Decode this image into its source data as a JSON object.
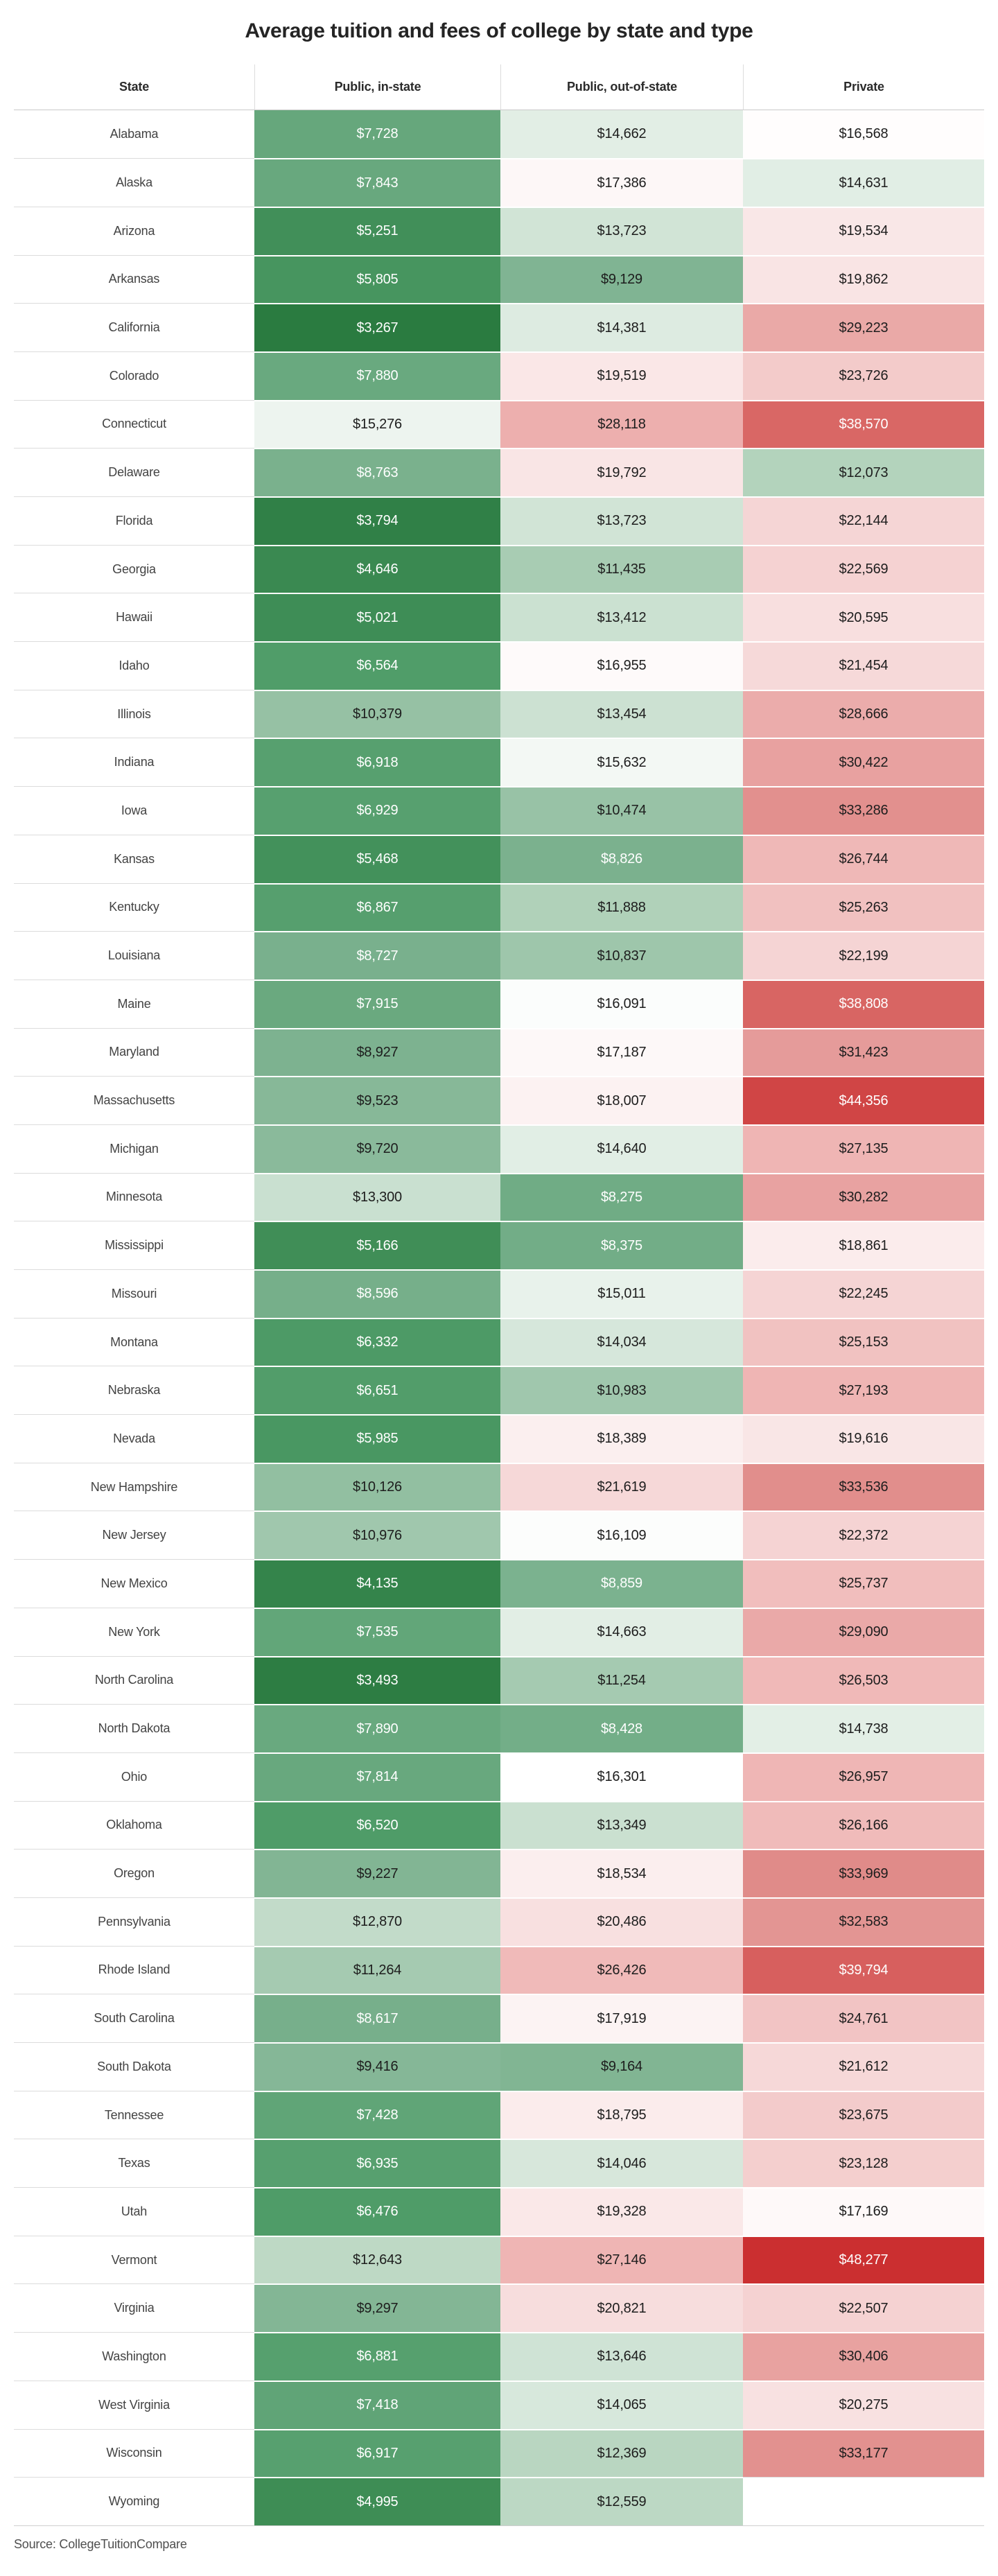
{
  "title": "Average tuition and fees of college by state and type",
  "source_note": "Source: CollegeTuitionCompare",
  "chart_data": {
    "type": "heatmap",
    "title": "Average tuition and fees of college by state and type",
    "columns": [
      "State",
      "Public, in-state",
      "Public, out-of-state",
      "Private"
    ],
    "value_format": "$#,##0",
    "legend_position": "none",
    "grid": false,
    "color_scale": {
      "type": "diverging",
      "description": "green = low tuition, white ≈ $16,300, red = high tuition; single scale shared by all three value columns",
      "stops": [
        [
          3267,
          "#2a7b40"
        ],
        [
          6500,
          "#4f9c68"
        ],
        [
          9000,
          "#7eb391"
        ],
        [
          12000,
          "#b2d2bb"
        ],
        [
          16300,
          "#ffffff"
        ],
        [
          21000,
          "#f7dcdc"
        ],
        [
          27000,
          "#efb6b5"
        ],
        [
          33000,
          "#e29290"
        ],
        [
          39000,
          "#d86462"
        ],
        [
          48277,
          "#cb2f30"
        ]
      ],
      "white_text_below": 8900,
      "white_text_above": 36000,
      "dark_text_color": "#1d1d1d",
      "white_text_color": "#ffffff"
    },
    "rows": [
      [
        "Alabama",
        7728,
        14662,
        16568
      ],
      [
        "Alaska",
        7843,
        17386,
        14631
      ],
      [
        "Arizona",
        5251,
        13723,
        19534
      ],
      [
        "Arkansas",
        5805,
        9129,
        19862
      ],
      [
        "California",
        3267,
        14381,
        29223
      ],
      [
        "Colorado",
        7880,
        19519,
        23726
      ],
      [
        "Connecticut",
        15276,
        28118,
        38570
      ],
      [
        "Delaware",
        8763,
        19792,
        12073
      ],
      [
        "Florida",
        3794,
        13723,
        22144
      ],
      [
        "Georgia",
        4646,
        11435,
        22569
      ],
      [
        "Hawaii",
        5021,
        13412,
        20595
      ],
      [
        "Idaho",
        6564,
        16955,
        21454
      ],
      [
        "Illinois",
        10379,
        13454,
        28666
      ],
      [
        "Indiana",
        6918,
        15632,
        30422
      ],
      [
        "Iowa",
        6929,
        10474,
        33286
      ],
      [
        "Kansas",
        5468,
        8826,
        26744
      ],
      [
        "Kentucky",
        6867,
        11888,
        25263
      ],
      [
        "Louisiana",
        8727,
        10837,
        22199
      ],
      [
        "Maine",
        7915,
        16091,
        38808
      ],
      [
        "Maryland",
        8927,
        17187,
        31423
      ],
      [
        "Massachusetts",
        9523,
        18007,
        44356
      ],
      [
        "Michigan",
        9720,
        14640,
        27135
      ],
      [
        "Minnesota",
        13300,
        8275,
        30282
      ],
      [
        "Mississippi",
        5166,
        8375,
        18861
      ],
      [
        "Missouri",
        8596,
        15011,
        22245
      ],
      [
        "Montana",
        6332,
        14034,
        25153
      ],
      [
        "Nebraska",
        6651,
        10983,
        27193
      ],
      [
        "Nevada",
        5985,
        18389,
        19616
      ],
      [
        "New Hampshire",
        10126,
        21619,
        33536
      ],
      [
        "New Jersey",
        10976,
        16109,
        22372
      ],
      [
        "New Mexico",
        4135,
        8859,
        25737
      ],
      [
        "New York",
        7535,
        14663,
        29090
      ],
      [
        "North Carolina",
        3493,
        11254,
        26503
      ],
      [
        "North Dakota",
        7890,
        8428,
        14738
      ],
      [
        "Ohio",
        7814,
        16301,
        26957
      ],
      [
        "Oklahoma",
        6520,
        13349,
        26166
      ],
      [
        "Oregon",
        9227,
        18534,
        33969
      ],
      [
        "Pennsylvania",
        12870,
        20486,
        32583
      ],
      [
        "Rhode Island",
        11264,
        26426,
        39794
      ],
      [
        "South Carolina",
        8617,
        17919,
        24761
      ],
      [
        "South Dakota",
        9416,
        9164,
        21612
      ],
      [
        "Tennessee",
        7428,
        18795,
        23675
      ],
      [
        "Texas",
        6935,
        14046,
        23128
      ],
      [
        "Utah",
        6476,
        19328,
        17169
      ],
      [
        "Vermont",
        12643,
        27146,
        48277
      ],
      [
        "Virginia",
        9297,
        20821,
        22507
      ],
      [
        "Washington",
        6881,
        13646,
        30406
      ],
      [
        "West Virginia",
        7418,
        14065,
        20275
      ],
      [
        "Wisconsin",
        6917,
        12369,
        33177
      ],
      [
        "Wyoming",
        4995,
        12559,
        null
      ]
    ]
  }
}
